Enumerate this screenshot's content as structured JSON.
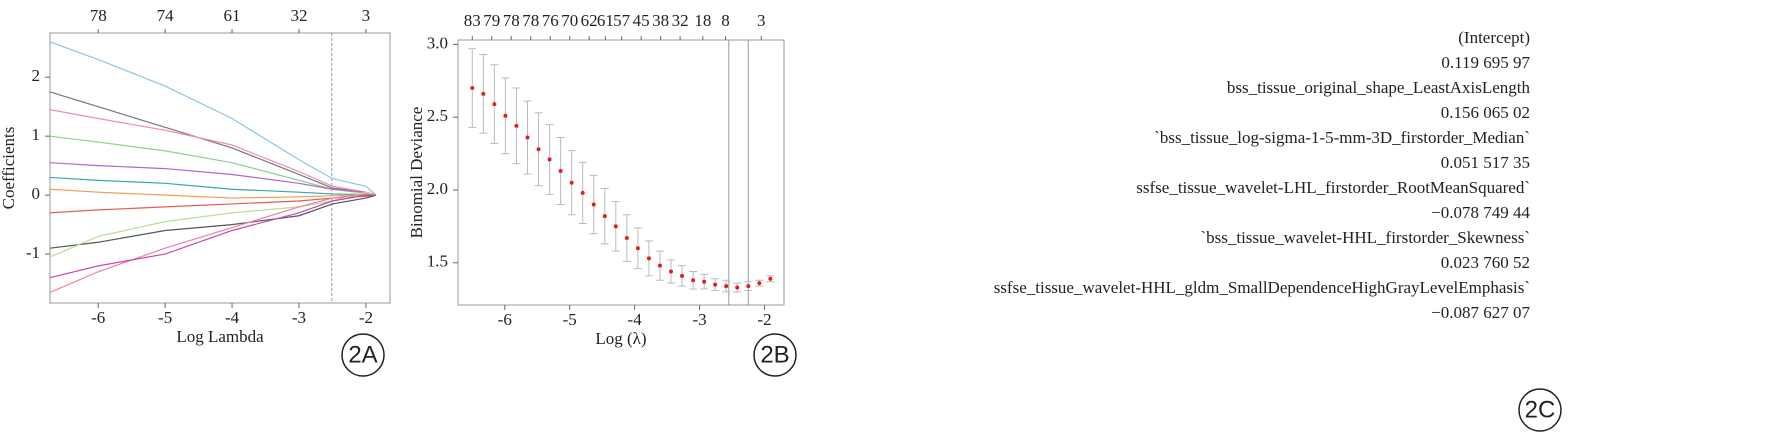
{
  "chart_data": [
    {
      "type": "line",
      "xlabel": "Log Lambda",
      "ylabel": "Coefficients",
      "xlim": [
        -6.72,
        -1.64
      ],
      "ylim": [
        -1.83,
        2.75
      ],
      "xticks": [
        -6,
        -5,
        -4,
        -3,
        -2
      ],
      "yticks": [
        -1,
        0,
        1,
        2
      ],
      "x2ticks": [
        {
          "value": -6,
          "label": "78"
        },
        {
          "value": -5,
          "label": "74"
        },
        {
          "value": -4,
          "label": "61"
        },
        {
          "value": -3,
          "label": "32"
        },
        {
          "value": -2,
          "label": "3"
        }
      ],
      "vlines": [
        -2.51
      ],
      "x": [
        -6.72,
        -6,
        -5,
        -4,
        -3,
        -2.5,
        -2,
        -1.85
      ],
      "series": [
        {
          "color": "#8ec3ea",
          "values": [
            2.6,
            2.3,
            1.85,
            1.3,
            0.6,
            0.28,
            0.15,
            0
          ]
        },
        {
          "color": "#777777",
          "values": [
            1.75,
            1.5,
            1.15,
            0.8,
            0.35,
            0.12,
            0.05,
            0
          ]
        },
        {
          "color": "#f08db5",
          "values": [
            1.45,
            1.3,
            1.1,
            0.85,
            0.4,
            0.15,
            0.05,
            0
          ]
        },
        {
          "color": "#8fd08f",
          "values": [
            1.0,
            0.9,
            0.75,
            0.55,
            0.25,
            0.1,
            0.03,
            0
          ]
        },
        {
          "color": "#b565c9",
          "values": [
            0.55,
            0.5,
            0.45,
            0.35,
            0.2,
            0.1,
            0.05,
            0
          ]
        },
        {
          "color": "#3aa6a6",
          "values": [
            0.3,
            0.25,
            0.2,
            0.1,
            0.05,
            0.02,
            0.01,
            0
          ]
        },
        {
          "color": "#f0a050",
          "values": [
            0.1,
            0.05,
            0,
            -0.05,
            -0.03,
            -0.01,
            0,
            0
          ]
        },
        {
          "color": "#e05a5a",
          "values": [
            -0.3,
            -0.25,
            -0.2,
            -0.15,
            -0.1,
            -0.05,
            -0.02,
            0
          ]
        },
        {
          "color": "#555555",
          "values": [
            -0.9,
            -0.8,
            -0.6,
            -0.5,
            -0.35,
            -0.15,
            -0.05,
            0
          ]
        },
        {
          "color": "#b5e08f",
          "values": [
            -1.05,
            -0.7,
            -0.45,
            -0.3,
            -0.2,
            -0.1,
            0.05,
            0
          ]
        },
        {
          "color": "#f07fa0",
          "values": [
            -1.65,
            -1.3,
            -0.9,
            -0.55,
            -0.2,
            -0.05,
            0.02,
            0
          ]
        },
        {
          "color": "#c04bb0",
          "values": [
            -1.4,
            -1.2,
            -1.0,
            -0.6,
            -0.3,
            -0.1,
            0,
            0
          ]
        }
      ]
    },
    {
      "type": "errorbar",
      "xlabel": "Log (λ)",
      "ylabel": "Binomial Deviance",
      "xlim": [
        -6.72,
        -1.7
      ],
      "ylim": [
        1.21,
        3.03
      ],
      "xticks": [
        -6,
        -5,
        -4,
        -3,
        -2
      ],
      "yticks": [
        {
          "value": 1.5,
          "label": "1.5"
        },
        {
          "value": 2,
          "label": "2.0"
        },
        {
          "value": 2.5,
          "label": "2.5"
        },
        {
          "value": 3,
          "label": "3.0"
        }
      ],
      "x2ticks": [
        {
          "value": -6.5,
          "label": "83"
        },
        {
          "value": -6.2,
          "label": "79"
        },
        {
          "value": -5.9,
          "label": "78"
        },
        {
          "value": -5.6,
          "label": "78"
        },
        {
          "value": -5.3,
          "label": "76"
        },
        {
          "value": -5.0,
          "label": "70"
        },
        {
          "value": -4.7,
          "label": "62"
        },
        {
          "value": -4.45,
          "label": "61"
        },
        {
          "value": -4.2,
          "label": "57"
        },
        {
          "value": -3.9,
          "label": "45"
        },
        {
          "value": -3.6,
          "label": "38"
        },
        {
          "value": -3.3,
          "label": "32"
        },
        {
          "value": -2.95,
          "label": "18"
        },
        {
          "value": -2.6,
          "label": "8"
        },
        {
          "value": -2.05,
          "label": "3"
        }
      ],
      "vlines": [
        -2.55,
        -2.25
      ],
      "color": "#e02020",
      "error_color": "#bbbbbb",
      "x": [
        -6.5,
        -6.33,
        -6.16,
        -5.99,
        -5.82,
        -5.65,
        -5.48,
        -5.31,
        -5.14,
        -4.97,
        -4.8,
        -4.63,
        -4.46,
        -4.29,
        -4.12,
        -3.95,
        -3.78,
        -3.61,
        -3.44,
        -3.27,
        -3.1,
        -2.93,
        -2.76,
        -2.59,
        -2.42,
        -2.25,
        -2.08,
        -1.91
      ],
      "values": [
        2.7,
        2.66,
        2.59,
        2.51,
        2.44,
        2.36,
        2.28,
        2.21,
        2.13,
        2.05,
        1.98,
        1.9,
        1.82,
        1.75,
        1.67,
        1.6,
        1.53,
        1.48,
        1.44,
        1.41,
        1.38,
        1.37,
        1.35,
        1.34,
        1.33,
        1.34,
        1.36,
        1.39
      ],
      "errors": [
        0.27,
        0.27,
        0.27,
        0.26,
        0.26,
        0.25,
        0.25,
        0.24,
        0.23,
        0.22,
        0.21,
        0.2,
        0.19,
        0.17,
        0.16,
        0.14,
        0.12,
        0.1,
        0.08,
        0.07,
        0.06,
        0.05,
        0.04,
        0.04,
        0.03,
        0.03,
        0.02,
        0.02
      ]
    }
  ],
  "panel_c": {
    "rows": [
      {
        "name": "(Intercept)",
        "value": "0.119 695 97"
      },
      {
        "name": "bss_tissue_original_shape_LeastAxisLength",
        "value": "0.156 065 02"
      },
      {
        "name": "`bss_tissue_log-sigma-1-5-mm-3D_firstorder_Median`",
        "value": "0.051 517 35"
      },
      {
        "name": "ssfse_tissue_wavelet-LHL_firstorder_RootMeanSquared`",
        "value": "−0.078 749 44"
      },
      {
        "name": "`bss_tissue_wavelet-HHL_firstorder_Skewness`",
        "value": "0.023 760 52"
      },
      {
        "name": "ssfse_tissue_wavelet-HHL_gldm_SmallDependenceHighGrayLevelEmphasis`",
        "value": "−0.087 627 07"
      }
    ]
  },
  "panel_labels": [
    "2A",
    "2B",
    "2C"
  ]
}
